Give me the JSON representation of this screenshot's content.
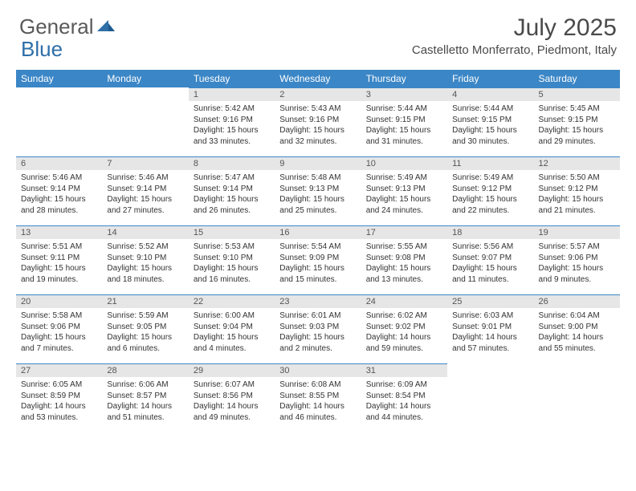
{
  "brand": {
    "text1": "General",
    "text2": "Blue",
    "text_color": "#5a5a5a",
    "blue_color": "#2f6fa8"
  },
  "title": "July 2025",
  "location": "Castelletto Monferrato, Piedmont, Italy",
  "colors": {
    "header_bg": "#3b86c6",
    "header_text": "#ffffff",
    "daynum_bg": "#e6e6e6",
    "daynum_border": "#3b86c6",
    "body_text": "#333333"
  },
  "weekdays": [
    "Sunday",
    "Monday",
    "Tuesday",
    "Wednesday",
    "Thursday",
    "Friday",
    "Saturday"
  ],
  "weeks": [
    [
      null,
      null,
      {
        "n": "1",
        "sr": "5:42 AM",
        "ss": "9:16 PM",
        "dl": "15 hours and 33 minutes."
      },
      {
        "n": "2",
        "sr": "5:43 AM",
        "ss": "9:16 PM",
        "dl": "15 hours and 32 minutes."
      },
      {
        "n": "3",
        "sr": "5:44 AM",
        "ss": "9:15 PM",
        "dl": "15 hours and 31 minutes."
      },
      {
        "n": "4",
        "sr": "5:44 AM",
        "ss": "9:15 PM",
        "dl": "15 hours and 30 minutes."
      },
      {
        "n": "5",
        "sr": "5:45 AM",
        "ss": "9:15 PM",
        "dl": "15 hours and 29 minutes."
      }
    ],
    [
      {
        "n": "6",
        "sr": "5:46 AM",
        "ss": "9:14 PM",
        "dl": "15 hours and 28 minutes."
      },
      {
        "n": "7",
        "sr": "5:46 AM",
        "ss": "9:14 PM",
        "dl": "15 hours and 27 minutes."
      },
      {
        "n": "8",
        "sr": "5:47 AM",
        "ss": "9:14 PM",
        "dl": "15 hours and 26 minutes."
      },
      {
        "n": "9",
        "sr": "5:48 AM",
        "ss": "9:13 PM",
        "dl": "15 hours and 25 minutes."
      },
      {
        "n": "10",
        "sr": "5:49 AM",
        "ss": "9:13 PM",
        "dl": "15 hours and 24 minutes."
      },
      {
        "n": "11",
        "sr": "5:49 AM",
        "ss": "9:12 PM",
        "dl": "15 hours and 22 minutes."
      },
      {
        "n": "12",
        "sr": "5:50 AM",
        "ss": "9:12 PM",
        "dl": "15 hours and 21 minutes."
      }
    ],
    [
      {
        "n": "13",
        "sr": "5:51 AM",
        "ss": "9:11 PM",
        "dl": "15 hours and 19 minutes."
      },
      {
        "n": "14",
        "sr": "5:52 AM",
        "ss": "9:10 PM",
        "dl": "15 hours and 18 minutes."
      },
      {
        "n": "15",
        "sr": "5:53 AM",
        "ss": "9:10 PM",
        "dl": "15 hours and 16 minutes."
      },
      {
        "n": "16",
        "sr": "5:54 AM",
        "ss": "9:09 PM",
        "dl": "15 hours and 15 minutes."
      },
      {
        "n": "17",
        "sr": "5:55 AM",
        "ss": "9:08 PM",
        "dl": "15 hours and 13 minutes."
      },
      {
        "n": "18",
        "sr": "5:56 AM",
        "ss": "9:07 PM",
        "dl": "15 hours and 11 minutes."
      },
      {
        "n": "19",
        "sr": "5:57 AM",
        "ss": "9:06 PM",
        "dl": "15 hours and 9 minutes."
      }
    ],
    [
      {
        "n": "20",
        "sr": "5:58 AM",
        "ss": "9:06 PM",
        "dl": "15 hours and 7 minutes."
      },
      {
        "n": "21",
        "sr": "5:59 AM",
        "ss": "9:05 PM",
        "dl": "15 hours and 6 minutes."
      },
      {
        "n": "22",
        "sr": "6:00 AM",
        "ss": "9:04 PM",
        "dl": "15 hours and 4 minutes."
      },
      {
        "n": "23",
        "sr": "6:01 AM",
        "ss": "9:03 PM",
        "dl": "15 hours and 2 minutes."
      },
      {
        "n": "24",
        "sr": "6:02 AM",
        "ss": "9:02 PM",
        "dl": "14 hours and 59 minutes."
      },
      {
        "n": "25",
        "sr": "6:03 AM",
        "ss": "9:01 PM",
        "dl": "14 hours and 57 minutes."
      },
      {
        "n": "26",
        "sr": "6:04 AM",
        "ss": "9:00 PM",
        "dl": "14 hours and 55 minutes."
      }
    ],
    [
      {
        "n": "27",
        "sr": "6:05 AM",
        "ss": "8:59 PM",
        "dl": "14 hours and 53 minutes."
      },
      {
        "n": "28",
        "sr": "6:06 AM",
        "ss": "8:57 PM",
        "dl": "14 hours and 51 minutes."
      },
      {
        "n": "29",
        "sr": "6:07 AM",
        "ss": "8:56 PM",
        "dl": "14 hours and 49 minutes."
      },
      {
        "n": "30",
        "sr": "6:08 AM",
        "ss": "8:55 PM",
        "dl": "14 hours and 46 minutes."
      },
      {
        "n": "31",
        "sr": "6:09 AM",
        "ss": "8:54 PM",
        "dl": "14 hours and 44 minutes."
      },
      null,
      null
    ]
  ],
  "labels": {
    "sunrise": "Sunrise:",
    "sunset": "Sunset:",
    "daylight": "Daylight:"
  }
}
